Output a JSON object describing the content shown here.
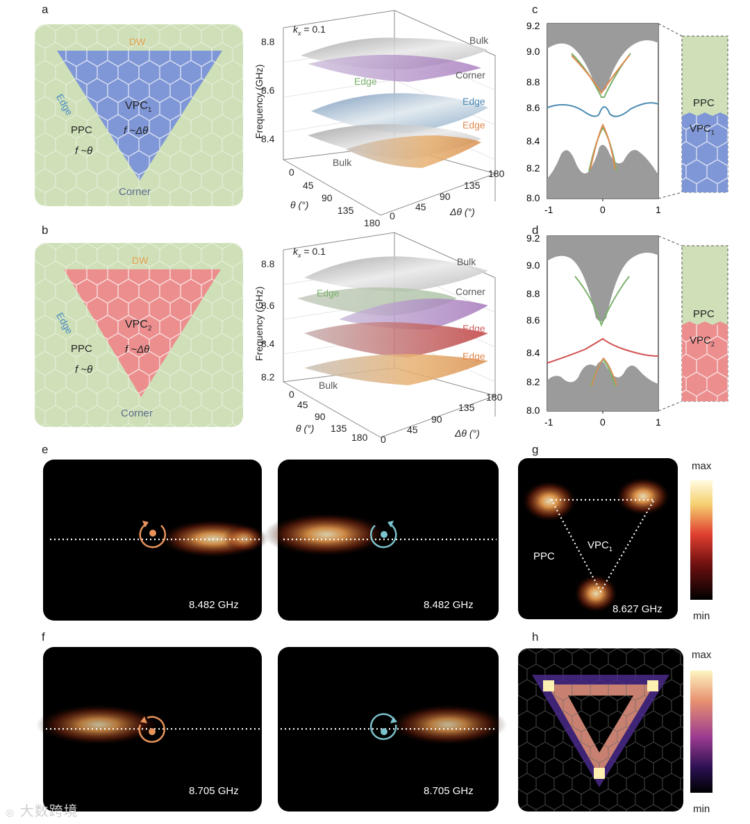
{
  "panel_labels": {
    "a": "a",
    "b": "b",
    "c": "c",
    "d": "d",
    "e": "e",
    "f": "f",
    "g": "g",
    "h": "h"
  },
  "schematic_a": {
    "dw": "DW",
    "edge": "Edge",
    "vpc": "VPC",
    "vpc_sub": "1",
    "f_dtheta": "f ~Δθ",
    "ppc": "PPC",
    "f_theta": "f ~θ",
    "corner": "Corner",
    "fill_color": "#7f97d6"
  },
  "schematic_b": {
    "dw": "DW",
    "edge": "Edge",
    "vpc": "VPC",
    "vpc_sub": "2",
    "f_dtheta": "f ~Δθ",
    "ppc": "PPC",
    "f_theta": "f ~θ",
    "corner": "Corner",
    "fill_color": "#ec8e8e"
  },
  "surface_a": {
    "kx_k": "k",
    "kx_sub": "x",
    "kx_val": " = 0.1",
    "ylabel": "Frequency (GHz)",
    "yticks": [
      "8.8",
      "8.6",
      "8.4"
    ],
    "theta_label": "θ (°)",
    "dtheta_label": "Δθ (°)",
    "theta_ticks": [
      "0",
      "45",
      "90",
      "135",
      "180"
    ],
    "dtheta_ticks": [
      "0",
      "45",
      "90",
      "135",
      "180"
    ],
    "layers": {
      "bulk_top": "Bulk",
      "corner": "Corner",
      "edge_green": "Edge",
      "edge_blue": "Edge",
      "edge_orange": "Edge",
      "bulk_bottom": "Bulk"
    }
  },
  "surface_b": {
    "kx_k": "k",
    "kx_sub": "x",
    "kx_val": " = 0.1",
    "ylabel": "Frequency (GHz)",
    "yticks": [
      "8.8",
      "8.6",
      "8.4",
      "8.2"
    ],
    "theta_label": "θ (°)",
    "dtheta_label": "Δθ (°)",
    "theta_ticks": [
      "0",
      "45",
      "90",
      "135",
      "180"
    ],
    "dtheta_ticks": [
      "0",
      "45",
      "90",
      "135",
      "180"
    ],
    "layers": {
      "bulk_top": "Bulk",
      "edge_green": "Edge",
      "corner": "Corner",
      "edge_red": "Edge",
      "edge_orange": "Edge",
      "bulk_bottom": "Bulk"
    }
  },
  "band_c": {
    "yticks": [
      "9.2",
      "9.0",
      "8.8",
      "8.6",
      "8.4",
      "8.2",
      "8.0"
    ],
    "xticks": [
      "-1",
      "0",
      "1"
    ],
    "ppc": "PPC",
    "vpc": "VPC",
    "vpc_sub": "1"
  },
  "band_d": {
    "yticks": [
      "9.2",
      "9.0",
      "8.8",
      "8.6",
      "8.4",
      "8.2",
      "8.0"
    ],
    "xticks": [
      "-1",
      "0",
      "1"
    ],
    "ppc": "PPC",
    "vpc": "VPC",
    "vpc_sub": "2"
  },
  "field_e": {
    "left_freq": "8.482 GHz",
    "right_freq": "8.482 GHz"
  },
  "field_f": {
    "left_freq": "8.705 GHz",
    "right_freq": "8.705 GHz"
  },
  "field_g": {
    "ppc": "PPC",
    "vpc": "VPC",
    "vpc_sub": "1",
    "freq": "8.627 GHz",
    "max": "max",
    "min": "min"
  },
  "field_h": {
    "max": "max",
    "min": "min"
  },
  "watermark": "大数跨境"
}
